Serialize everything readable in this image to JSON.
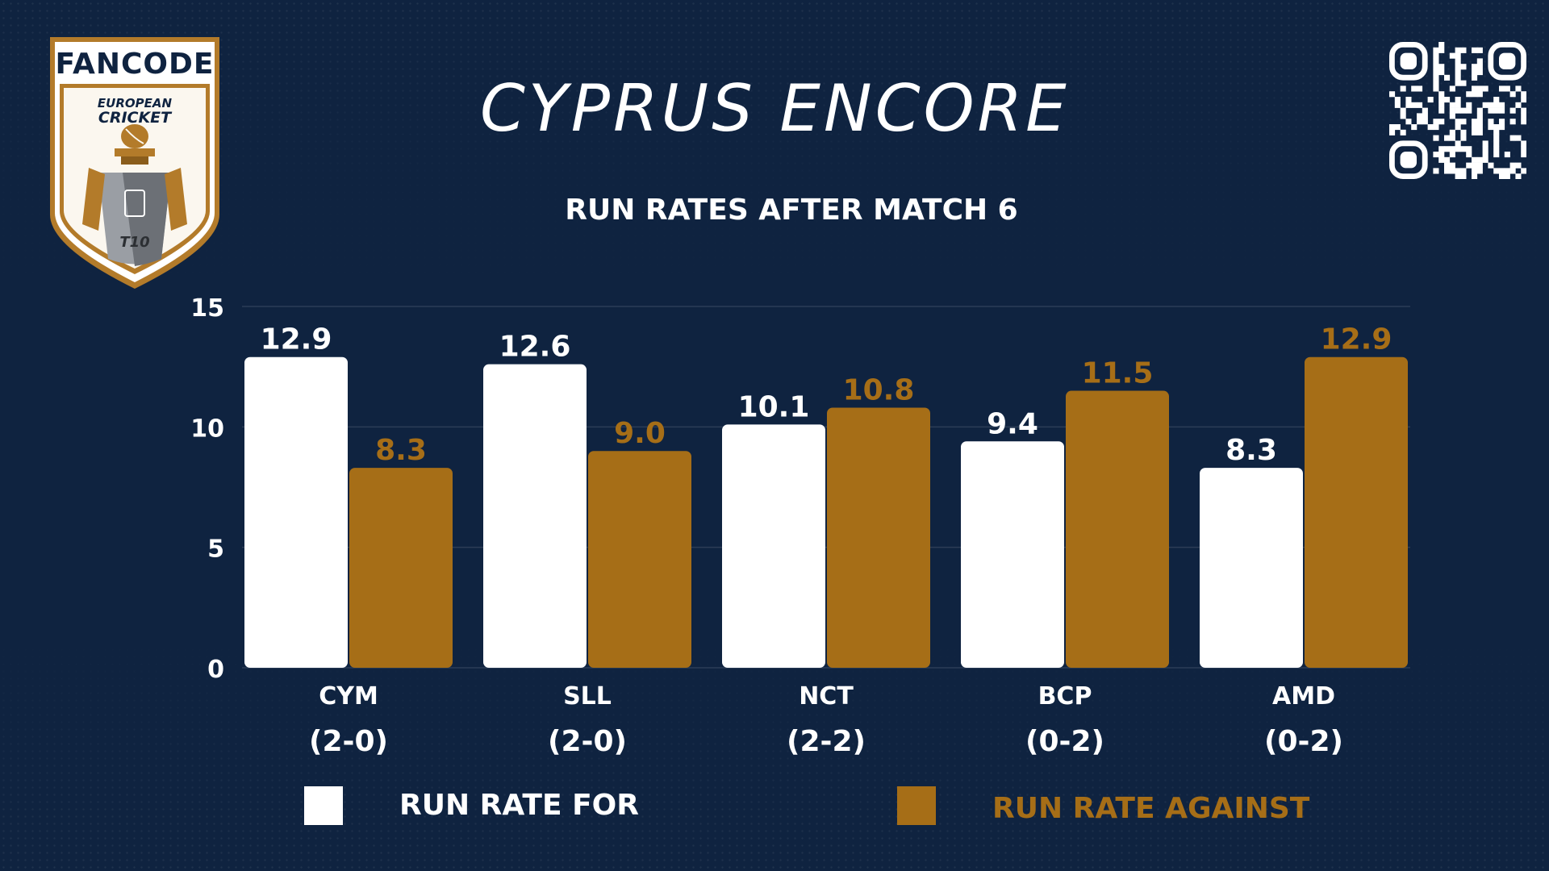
{
  "header": {
    "title": "CYPRUS ENCORE",
    "subtitle": "RUN RATES AFTER MATCH 6"
  },
  "logo": {
    "brand": "FANCODE",
    "line1": "EUROPEAN",
    "line2": "CRICKET",
    "format": "T10"
  },
  "colors": {
    "background": "#0f2340",
    "run_rate_for": "#ffffff",
    "run_rate_against": "#a66e17"
  },
  "chart_data": {
    "type": "bar",
    "categories": [
      "CYM",
      "SLL",
      "NCT",
      "BCP",
      "AMD"
    ],
    "category_records": [
      "(2-0)",
      "(2-0)",
      "(2-2)",
      "(0-2)",
      "(0-2)"
    ],
    "series": [
      {
        "name": "RUN RATE FOR",
        "values": [
          12.9,
          12.6,
          10.1,
          9.4,
          8.3
        ],
        "labels": [
          "12.9",
          "12.6",
          "10.1",
          "9.4",
          "8.3"
        ]
      },
      {
        "name": "RUN RATE AGAINST",
        "values": [
          8.3,
          9.0,
          10.8,
          11.5,
          12.9
        ],
        "labels": [
          "8.3",
          "9.0",
          "10.8",
          "11.5",
          "12.9"
        ]
      }
    ],
    "title": "RUN RATES AFTER MATCH 6",
    "xlabel": "",
    "ylabel": "",
    "ylim": [
      0,
      15
    ],
    "yticks": [
      0,
      5,
      10,
      15
    ],
    "grid": true,
    "legend": "bottom"
  }
}
